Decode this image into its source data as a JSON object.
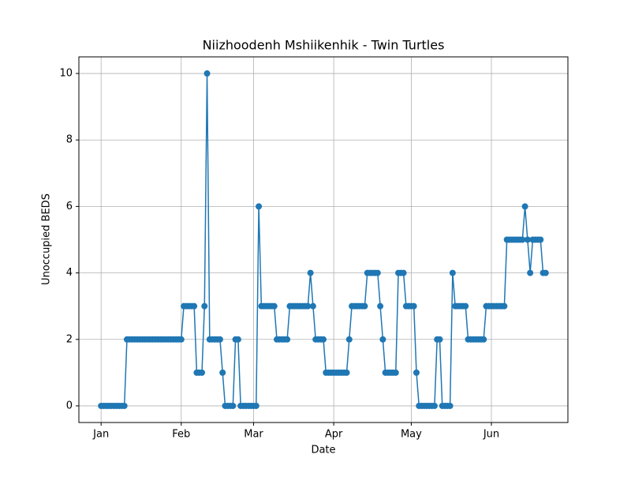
{
  "chart_data": {
    "type": "line",
    "title": "Niizhoodenh Mshiikenhik - Twin Turtles",
    "x_label": "Date",
    "y_label": "Unoccupied BEDS",
    "x": [
      1,
      2,
      3,
      4,
      5,
      6,
      7,
      8,
      9,
      10,
      11,
      12,
      13,
      14,
      15,
      16,
      17,
      18,
      19,
      20,
      21,
      22,
      23,
      24,
      25,
      26,
      27,
      28,
      29,
      30,
      31,
      32,
      33,
      34,
      35,
      36,
      37,
      38,
      39,
      40,
      41,
      42,
      43,
      44,
      45,
      46,
      47,
      48,
      49,
      50,
      51,
      52,
      53,
      54,
      55,
      56,
      57,
      58,
      59,
      60,
      61,
      62,
      63,
      64,
      65,
      66,
      67,
      68,
      69,
      70,
      71,
      72,
      73,
      74,
      75,
      76,
      77,
      78,
      79,
      80,
      81,
      82,
      83,
      84,
      85,
      86,
      87,
      88,
      89,
      90,
      91,
      92,
      93,
      94,
      95,
      96,
      97,
      98,
      99,
      100,
      101,
      102,
      103,
      104,
      105,
      106,
      107,
      108,
      109,
      110,
      111,
      112,
      113,
      114,
      115,
      116,
      117,
      118,
      119,
      120,
      121,
      122,
      123,
      124,
      125,
      126,
      127,
      128,
      129,
      130,
      131,
      132,
      133,
      134,
      135,
      136,
      137,
      138,
      139,
      140,
      141,
      142,
      143,
      144,
      145,
      146,
      147,
      148,
      149,
      150,
      151,
      152,
      153,
      154,
      155,
      156,
      157,
      158,
      159,
      160,
      161,
      162,
      163,
      164,
      165,
      166,
      167,
      168,
      169,
      170,
      171,
      172,
      173
    ],
    "series": [
      {
        "name": "Unoccupied BEDS",
        "color": "#1f77b4",
        "values": [
          0,
          0,
          0,
          0,
          0,
          0,
          0,
          0,
          0,
          0,
          2,
          2,
          2,
          2,
          2,
          2,
          2,
          2,
          2,
          2,
          2,
          2,
          2,
          2,
          2,
          2,
          2,
          2,
          2,
          2,
          2,
          2,
          3,
          3,
          3,
          3,
          3,
          1,
          1,
          1,
          3,
          10,
          2,
          2,
          2,
          2,
          2,
          1,
          0,
          0,
          0,
          0,
          2,
          2,
          0,
          0,
          0,
          0,
          0,
          0,
          0,
          6,
          3,
          3,
          3,
          3,
          3,
          3,
          2,
          2,
          2,
          2,
          2,
          3,
          3,
          3,
          3,
          3,
          3,
          3,
          3,
          4,
          3,
          2,
          2,
          2,
          2,
          1,
          1,
          1,
          1,
          1,
          1,
          1,
          1,
          1,
          2,
          3,
          3,
          3,
          3,
          3,
          3,
          4,
          4,
          4,
          4,
          4,
          3,
          2,
          1,
          1,
          1,
          1,
          1,
          4,
          4,
          4,
          3,
          3,
          3,
          3,
          1,
          0,
          0,
          0,
          0,
          0,
          0,
          0,
          2,
          2,
          0,
          0,
          0,
          0,
          4,
          3,
          3,
          3,
          3,
          3,
          2,
          2,
          2,
          2,
          2,
          2,
          2,
          3,
          3,
          3,
          3,
          3,
          3,
          3,
          3,
          5,
          5,
          5,
          5,
          5,
          5,
          5,
          6,
          5,
          4,
          5,
          5,
          5,
          5,
          4,
          4
        ]
      }
    ],
    "xlim": [
      -7.6,
      181.6
    ],
    "xticks": [
      {
        "value": 1,
        "label": "Jan"
      },
      {
        "value": 32,
        "label": "Feb"
      },
      {
        "value": 60,
        "label": "Mar"
      },
      {
        "value": 91,
        "label": "Apr"
      },
      {
        "value": 121,
        "label": "May"
      },
      {
        "value": 152,
        "label": "Jun"
      }
    ],
    "ylim": [
      -0.5,
      10.5
    ],
    "yticks": [
      0,
      2,
      4,
      6,
      8,
      10
    ],
    "grid": true
  }
}
